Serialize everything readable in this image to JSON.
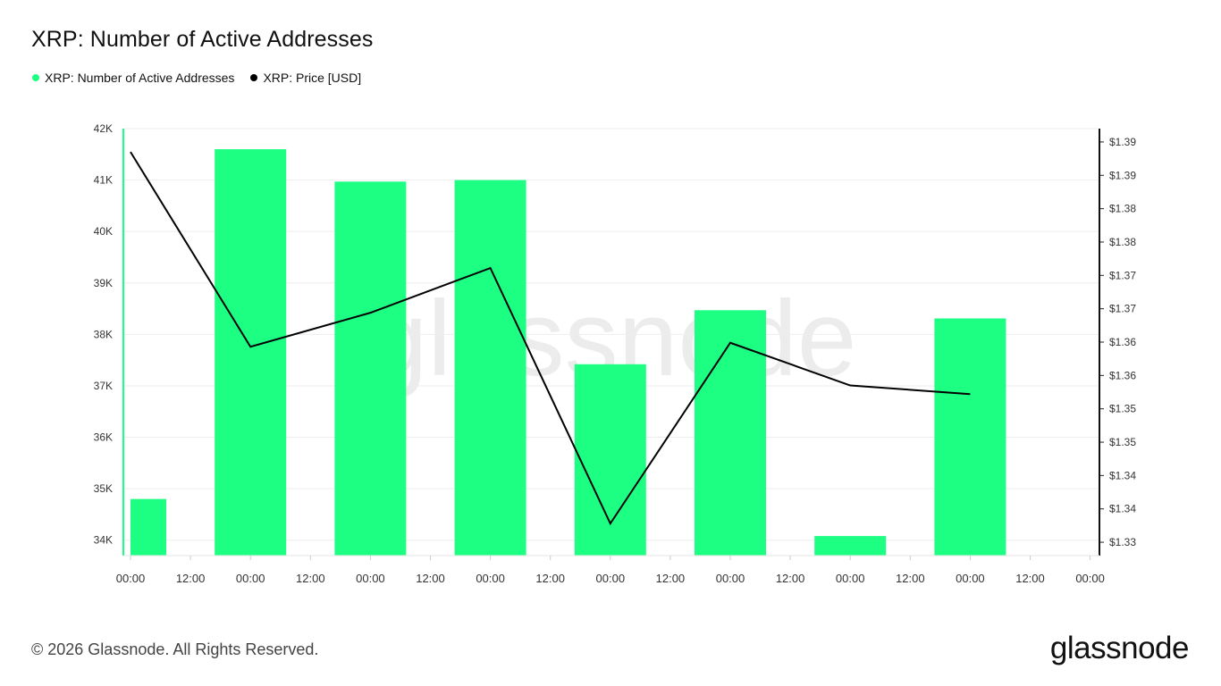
{
  "title": "XRP: Number of Active Addresses",
  "legend": [
    {
      "label": "XRP: Number of Active Addresses",
      "color": "#1dff83"
    },
    {
      "label": "XRP: Price [USD]",
      "color": "#000000"
    }
  ],
  "watermark": "glassnode",
  "footer": {
    "copyright": "© 2026 Glassnode. All Rights Reserved.",
    "brand": "glassnode"
  },
  "chart_data": {
    "type": "bar",
    "title": "XRP: Number of Active Addresses",
    "x_tick_labels": [
      "00:00",
      "12:00",
      "00:00",
      "12:00",
      "00:00",
      "12:00",
      "00:00",
      "12:00",
      "00:00",
      "12:00",
      "00:00",
      "12:00",
      "00:00",
      "12:00",
      "00:00",
      "12:00",
      "00:00"
    ],
    "y_left": {
      "ticks": [
        34000,
        35000,
        36000,
        37000,
        38000,
        39000,
        40000,
        41000,
        42000
      ],
      "tick_labels": [
        "34K",
        "35K",
        "36K",
        "37K",
        "38K",
        "39K",
        "40K",
        "41K",
        "42K"
      ],
      "range": [
        33700,
        42000
      ]
    },
    "y_right": {
      "ticks": [
        1.33,
        1.335,
        1.34,
        1.345,
        1.35,
        1.355,
        1.36,
        1.365,
        1.37,
        1.375,
        1.38,
        1.385,
        1.39
      ],
      "tick_labels": [
        "$1.33",
        "$1.34",
        "$1.34",
        "$1.35",
        "$1.35",
        "$1.36",
        "$1.36",
        "$1.37",
        "$1.37",
        "$1.38",
        "$1.38",
        "$1.39",
        "$1.39"
      ],
      "range": [
        1.328,
        1.392
      ]
    },
    "series": [
      {
        "name": "XRP: Number of Active Addresses",
        "type": "bar",
        "axis": "left",
        "color": "#1dff83",
        "x_index": [
          0,
          2,
          4,
          6,
          8,
          10,
          12,
          14
        ],
        "values": [
          34800,
          41600,
          40970,
          41000,
          37420,
          38470,
          34080,
          38310
        ]
      },
      {
        "name": "XRP: Price [USD]",
        "type": "line",
        "axis": "right",
        "color": "#000000",
        "x_index": [
          0,
          2,
          4,
          6,
          8,
          10,
          12,
          14
        ],
        "values": [
          1.3885,
          1.3593,
          1.3644,
          1.3711,
          1.3328,
          1.3599,
          1.3535,
          1.3522
        ]
      }
    ],
    "grid": true
  }
}
